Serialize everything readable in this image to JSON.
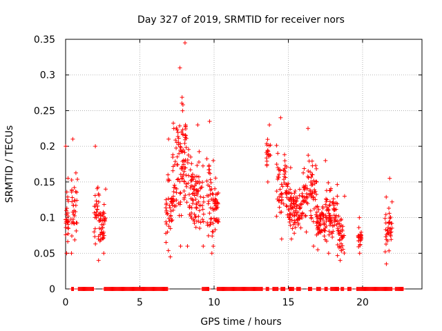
{
  "chart_data": {
    "type": "scatter",
    "title": "Day 327 of 2019, SRMTID for receiver nors",
    "xlabel": "GPS time / hours",
    "ylabel": "SRMTID / TECUs",
    "xlim": [
      0,
      24
    ],
    "ylim": [
      0,
      0.35
    ],
    "xticks": [
      0,
      5,
      10,
      15,
      20
    ],
    "xtick_labels": [
      "0",
      "5",
      "10",
      "15",
      "20"
    ],
    "yticks": [
      0,
      0.05,
      0.1,
      0.15,
      0.2,
      0.25,
      0.3,
      0.35
    ],
    "ytick_labels": [
      "0",
      "0.05",
      "0.1",
      "0.15",
      "0.2",
      "0.25",
      "0.3",
      "0.35"
    ],
    "grid": true,
    "marker": "+",
    "color": "#ff0000",
    "clusters": [
      {
        "x_range": [
          0.0,
          0.2
        ],
        "y_range": [
          0.05,
          0.2
        ],
        "n": 30
      },
      {
        "x_range": [
          0.35,
          0.8
        ],
        "y_range": [
          0.05,
          0.21
        ],
        "n": 35
      },
      {
        "x_range": [
          1.9,
          2.25
        ],
        "y_range": [
          0.04,
          0.2
        ],
        "n": 30
      },
      {
        "x_range": [
          2.25,
          2.7
        ],
        "y_range": [
          0.05,
          0.14
        ],
        "n": 40
      },
      {
        "x_range": [
          6.7,
          7.2
        ],
        "y_range": [
          0.045,
          0.21
        ],
        "n": 40
      },
      {
        "x_range": [
          7.2,
          7.8
        ],
        "y_range": [
          0.06,
          0.31
        ],
        "n": 60
      },
      {
        "x_range": [
          7.8,
          8.3
        ],
        "y_range": [
          0.06,
          0.345
        ],
        "n": 55
      },
      {
        "x_range": [
          8.3,
          9.3
        ],
        "y_range": [
          0.06,
          0.23
        ],
        "n": 90
      },
      {
        "x_range": [
          9.5,
          9.9
        ],
        "y_range": [
          0.05,
          0.235
        ],
        "n": 35
      },
      {
        "x_range": [
          9.9,
          10.3
        ],
        "y_range": [
          0.06,
          0.18
        ],
        "n": 40
      },
      {
        "x_range": [
          13.5,
          13.8
        ],
        "y_range": [
          0.15,
          0.23
        ],
        "n": 20
      },
      {
        "x_range": [
          14.2,
          15.0
        ],
        "y_range": [
          0.07,
          0.24
        ],
        "n": 60
      },
      {
        "x_range": [
          15.0,
          16.0
        ],
        "y_range": [
          0.07,
          0.17
        ],
        "n": 90
      },
      {
        "x_range": [
          16.0,
          16.9
        ],
        "y_range": [
          0.06,
          0.225
        ],
        "n": 70
      },
      {
        "x_range": [
          16.9,
          17.5
        ],
        "y_range": [
          0.055,
          0.15
        ],
        "n": 60
      },
      {
        "x_range": [
          17.5,
          18.3
        ],
        "y_range": [
          0.05,
          0.18
        ],
        "n": 70
      },
      {
        "x_range": [
          18.3,
          18.8
        ],
        "y_range": [
          0.04,
          0.13
        ],
        "n": 40
      },
      {
        "x_range": [
          19.7,
          19.95
        ],
        "y_range": [
          0.05,
          0.1
        ],
        "n": 25
      },
      {
        "x_range": [
          21.5,
          22.0
        ],
        "y_range": [
          0.035,
          0.155
        ],
        "n": 40
      }
    ],
    "zero_segments": [
      [
        0.4,
        0.55
      ],
      [
        0.85,
        1.9
      ],
      [
        2.6,
        6.9
      ],
      [
        9.2,
        9.65
      ],
      [
        10.2,
        13.3
      ],
      [
        13.5,
        13.7
      ],
      [
        13.95,
        14.35
      ],
      [
        14.5,
        14.8
      ],
      [
        15.05,
        15.4
      ],
      [
        15.55,
        15.85
      ],
      [
        16.35,
        16.6
      ],
      [
        16.9,
        17.2
      ],
      [
        17.45,
        17.65
      ],
      [
        17.85,
        18.4
      ],
      [
        18.55,
        18.75
      ],
      [
        19.0,
        19.25
      ],
      [
        19.6,
        22.0
      ],
      [
        22.2,
        22.75
      ]
    ]
  }
}
